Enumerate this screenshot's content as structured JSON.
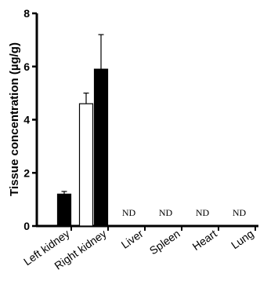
{
  "chart_data": {
    "type": "bar",
    "ylabel": "Tissue concentration (µg/g)",
    "xlabel": "",
    "title": "",
    "ylim": [
      0,
      8
    ],
    "yticks": [
      0,
      2,
      4,
      6,
      8
    ],
    "categories": [
      "Left kidney",
      "Right kidney",
      "Liver",
      "Spleen",
      "Heart",
      "Lung"
    ],
    "series": [
      {
        "fill": "#ffffff",
        "values": [
          null,
          4.6,
          null,
          null,
          null,
          null
        ],
        "errors": [
          null,
          0.4,
          null,
          null,
          null,
          null
        ]
      },
      {
        "fill": "#000000",
        "values": [
          1.2,
          5.9,
          null,
          null,
          null,
          null
        ],
        "errors": [
          0.1,
          1.3,
          null,
          null,
          null,
          null
        ]
      }
    ],
    "annotations": [
      {
        "category": "Liver",
        "text": "ND"
      },
      {
        "category": "Spleen",
        "text": "ND"
      },
      {
        "category": "Heart",
        "text": "ND"
      },
      {
        "category": "Lung",
        "text": "ND"
      }
    ],
    "grid": false
  }
}
